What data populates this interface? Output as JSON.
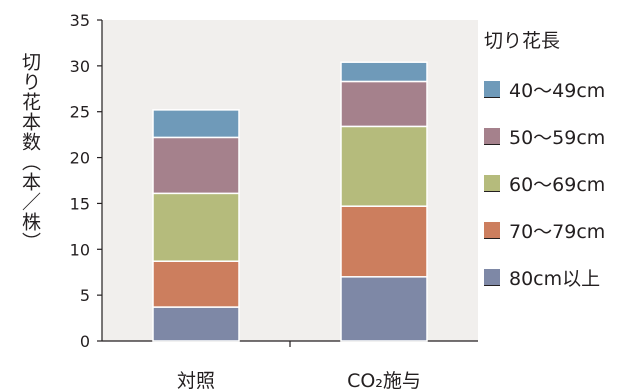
{
  "chart_data": {
    "type": "bar",
    "stacked": true,
    "title": "",
    "ylabel": "切り花本数（本／株）",
    "xlabel": "",
    "ylim": [
      0,
      35
    ],
    "yticks": [
      0,
      5,
      10,
      15,
      20,
      25,
      30,
      35
    ],
    "categories": [
      "対照",
      "CO₂施与"
    ],
    "legend_title": "切り花長",
    "legend_position": "right",
    "series": [
      {
        "name": "80cm以上",
        "color": "#7e88a6",
        "values": [
          3.7,
          7.0
        ]
      },
      {
        "name": "70〜79cm",
        "color": "#cc7e5e",
        "values": [
          5.0,
          7.7
        ]
      },
      {
        "name": "60〜69cm",
        "color": "#b5bb7c",
        "values": [
          7.4,
          8.7
        ]
      },
      {
        "name": "50〜59cm",
        "color": "#a5818c",
        "values": [
          6.1,
          4.9
        ]
      },
      {
        "name": "40〜49cm",
        "color": "#6f9ab9",
        "values": [
          3.0,
          2.1
        ]
      }
    ]
  }
}
